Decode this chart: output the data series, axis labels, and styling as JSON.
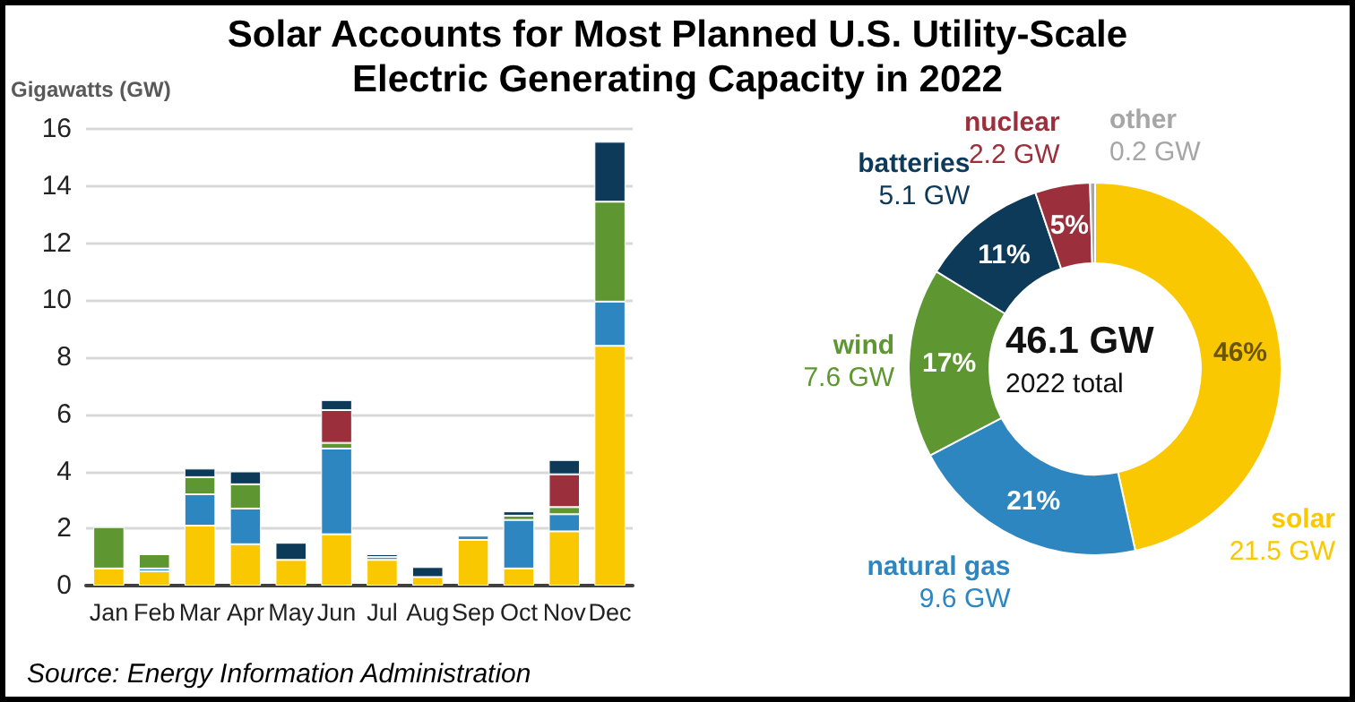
{
  "chart_data": [
    {
      "type": "bar",
      "title": "Solar Accounts for Most Planned U.S. Utility-Scale Electric Generating Capacity in 2022",
      "ylabel": "Gigawatts (GW)",
      "categories": [
        "Jan",
        "Feb",
        "Mar",
        "Apr",
        "May",
        "Jun",
        "Jul",
        "Aug",
        "Sep",
        "Oct",
        "Nov",
        "Dec"
      ],
      "stacked": true,
      "series": [
        {
          "color": "#fac800",
          "values": [
            0.6,
            0.5,
            2.1,
            1.45,
            0.9,
            1.8,
            0.9,
            0.3,
            1.6,
            0.6,
            1.9,
            8.4
          ]
        },
        {
          "color": "#2e86c1",
          "values": [
            null,
            0.1,
            1.1,
            1.25,
            null,
            3.0,
            0.1,
            null,
            0.15,
            1.7,
            0.6,
            1.55
          ]
        },
        {
          "color": "#5e9732",
          "values": [
            1.45,
            0.5,
            0.6,
            0.85,
            null,
            0.2,
            null,
            null,
            null,
            0.15,
            0.25,
            3.5
          ]
        },
        {
          "color": "#9b2f3c",
          "values": [
            null,
            null,
            null,
            null,
            null,
            1.15,
            null,
            null,
            null,
            null,
            1.15,
            null
          ]
        },
        {
          "color": "#0e3a5a",
          "values": [
            null,
            null,
            0.3,
            0.45,
            0.6,
            0.35,
            0.1,
            0.35,
            null,
            0.15,
            0.5,
            2.1
          ]
        }
      ],
      "ylim": [
        0,
        16
      ],
      "yticks": [
        0,
        2,
        4,
        6,
        8,
        10,
        12,
        14,
        16
      ],
      "grid": "y",
      "annotations": [
        "Source: Energy Information Administration"
      ]
    },
    {
      "type": "donut",
      "categories": [
        "solar",
        "natural gas",
        "wind",
        "batteries",
        "nuclear",
        "other"
      ],
      "values": [
        21.5,
        9.6,
        7.6,
        5.1,
        2.2,
        0.2
      ],
      "colors": [
        "#fac800",
        "#2e86c1",
        "#5e9732",
        "#0e3a5a",
        "#9b2f3c",
        "#a6a6a6"
      ],
      "value_labels": [
        "21.5 GW",
        "9.6 GW",
        "7.6 GW",
        "5.1 GW",
        "2.2 GW",
        "0.2 GW"
      ],
      "annotations": [
        "46.1 GW",
        "2022 total",
        {
          "text": "46%",
          "x": "solar"
        },
        {
          "text": "21%",
          "x": "natural gas"
        },
        {
          "text": "17%",
          "x": "wind"
        },
        {
          "text": "11%",
          "x": "batteries"
        },
        {
          "text": "5%",
          "x": "nuclear"
        }
      ]
    }
  ]
}
